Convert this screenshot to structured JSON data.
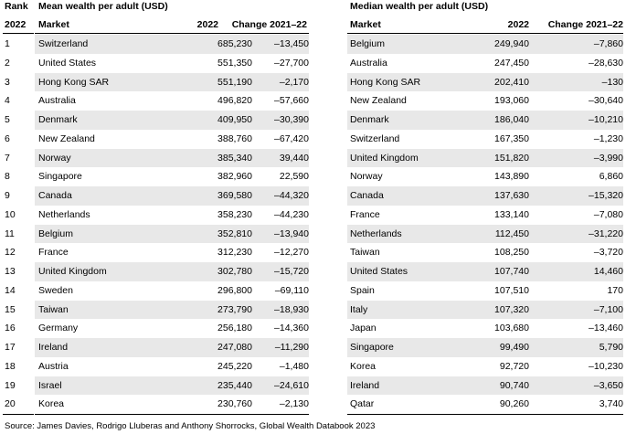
{
  "headers": {
    "rank": "Rank",
    "year": "2022",
    "left_title": "Mean wealth per adult (USD)",
    "right_title": "Median wealth per adult (USD)",
    "market": "Market",
    "value_year": "2022",
    "change": "Change 2021–22"
  },
  "ranks": [
    "1",
    "2",
    "3",
    "4",
    "5",
    "6",
    "7",
    "8",
    "9",
    "10",
    "11",
    "12",
    "13",
    "14",
    "15",
    "16",
    "17",
    "18",
    "19",
    "20"
  ],
  "mean_rows": [
    {
      "market": "Switzerland",
      "value": "685,230",
      "change": "–13,450"
    },
    {
      "market": "United States",
      "value": "551,350",
      "change": "–27,700"
    },
    {
      "market": "Hong Kong SAR",
      "value": "551,190",
      "change": "–2,170"
    },
    {
      "market": "Australia",
      "value": "496,820",
      "change": "–57,660"
    },
    {
      "market": "Denmark",
      "value": "409,950",
      "change": "–30,390"
    },
    {
      "market": "New Zealand",
      "value": "388,760",
      "change": "–67,420"
    },
    {
      "market": "Norway",
      "value": "385,340",
      "change": "39,440"
    },
    {
      "market": "Singapore",
      "value": "382,960",
      "change": "22,590"
    },
    {
      "market": "Canada",
      "value": "369,580",
      "change": "–44,320"
    },
    {
      "market": "Netherlands",
      "value": "358,230",
      "change": "–44,230"
    },
    {
      "market": "Belgium",
      "value": "352,810",
      "change": "–13,940"
    },
    {
      "market": "France",
      "value": "312,230",
      "change": "–12,270"
    },
    {
      "market": "United Kingdom",
      "value": "302,780",
      "change": "–15,720"
    },
    {
      "market": "Sweden",
      "value": "296,800",
      "change": "–69,110"
    },
    {
      "market": "Taiwan",
      "value": "273,790",
      "change": "–18,930"
    },
    {
      "market": "Germany",
      "value": "256,180",
      "change": "–14,360"
    },
    {
      "market": "Ireland",
      "value": "247,080",
      "change": "–11,290"
    },
    {
      "market": "Austria",
      "value": "245,220",
      "change": "–1,480"
    },
    {
      "market": "Israel",
      "value": "235,440",
      "change": "–24,610"
    },
    {
      "market": "Korea",
      "value": "230,760",
      "change": "–2,130"
    }
  ],
  "median_rows": [
    {
      "market": "Belgium",
      "value": "249,940",
      "change": "–7,860"
    },
    {
      "market": "Australia",
      "value": "247,450",
      "change": "–28,630"
    },
    {
      "market": "Hong Kong SAR",
      "value": "202,410",
      "change": "–130"
    },
    {
      "market": "New Zealand",
      "value": "193,060",
      "change": "–30,640"
    },
    {
      "market": "Denmark",
      "value": "186,040",
      "change": "–10,210"
    },
    {
      "market": "Switzerland",
      "value": "167,350",
      "change": "–1,230"
    },
    {
      "market": "United Kingdom",
      "value": "151,820",
      "change": "–3,990"
    },
    {
      "market": "Norway",
      "value": "143,890",
      "change": "6,860"
    },
    {
      "market": "Canada",
      "value": "137,630",
      "change": "–15,320"
    },
    {
      "market": "France",
      "value": "133,140",
      "change": "–7,080"
    },
    {
      "market": "Netherlands",
      "value": "112,450",
      "change": "–31,220"
    },
    {
      "market": "Taiwan",
      "value": "108,250",
      "change": "–3,720"
    },
    {
      "market": "United States",
      "value": "107,740",
      "change": "14,460"
    },
    {
      "market": "Spain",
      "value": "107,510",
      "change": "170"
    },
    {
      "market": "Italy",
      "value": "107,320",
      "change": "–7,100"
    },
    {
      "market": "Japan",
      "value": "103,680",
      "change": "–13,460"
    },
    {
      "market": "Singapore",
      "value": "99,490",
      "change": "5,790"
    },
    {
      "market": "Korea",
      "value": "92,720",
      "change": "–10,230"
    },
    {
      "market": "Ireland",
      "value": "90,740",
      "change": "–3,650"
    },
    {
      "market": "Qatar",
      "value": "90,260",
      "change": "3,740"
    }
  ],
  "source": "Source: James Davies, Rodrigo Lluberas and Anthony Shorrocks, Global Wealth Databook 2023"
}
